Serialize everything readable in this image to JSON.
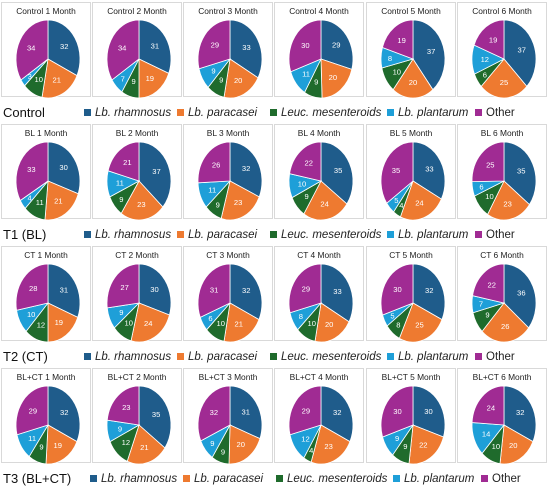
{
  "colors": {
    "rhamnosus": "#1f5c8b",
    "paracasei": "#ee7a30",
    "mesenteroids": "#1f6b2c",
    "plantarum": "#1e9fd8",
    "other": "#a02b93"
  },
  "legend": [
    {
      "key": "rhamnosus",
      "label": "Lb. rhamnosus",
      "italic": true
    },
    {
      "key": "paracasei",
      "label": "Lb. paracasei",
      "italic": true
    },
    {
      "key": "mesenteroids",
      "label": "Leuc. mesenteroids",
      "italic": true
    },
    {
      "key": "plantarum",
      "label": "Lb. plantarum",
      "italic": true
    },
    {
      "key": "other",
      "label": "Other",
      "italic": false
    }
  ],
  "series_order": [
    "rhamnosus",
    "paracasei",
    "mesenteroids",
    "plantarum",
    "other"
  ],
  "chart_data": {
    "type": "pie",
    "groups": [
      {
        "label": "Control",
        "charts": [
          {
            "title": "Control 1 Month",
            "values": [
              32,
              21,
              10,
              3,
              34
            ]
          },
          {
            "title": "Control 2 Month",
            "values": [
              31,
              19,
              9,
              7,
              34
            ]
          },
          {
            "title": "Control 3 Month",
            "values": [
              33,
              20,
              9,
              9,
              29
            ]
          },
          {
            "title": "Control 4 Month",
            "values": [
              29,
              20,
              9,
              11,
              30
            ]
          },
          {
            "title": "Control 5 Month",
            "values": [
              37,
              20,
              10,
              8,
              19
            ]
          },
          {
            "title": "Control 6 Month",
            "values": [
              37,
              25,
              6,
              12,
              19
            ]
          }
        ]
      },
      {
        "label": "T1 (BL)",
        "charts": [
          {
            "title": "BL 1 Month",
            "values": [
              30,
              21,
              11,
              4,
              33
            ]
          },
          {
            "title": "BL 2 Month",
            "values": [
              37,
              23,
              9,
              11,
              21
            ]
          },
          {
            "title": "BL 3 Month",
            "values": [
              32,
              23,
              9,
              11,
              26
            ]
          },
          {
            "title": "BL 4 Month",
            "values": [
              35,
              24,
              9,
              10,
              22
            ]
          },
          {
            "title": "BL 5 Month",
            "values": [
              33,
              24,
              4,
              5,
              35
            ]
          },
          {
            "title": "BL 6 Month",
            "values": [
              35,
              23,
              10,
              6,
              25
            ]
          }
        ]
      },
      {
        "label": "T2 (CT)",
        "charts": [
          {
            "title": "CT 1 Month",
            "values": [
              31,
              19,
              12,
              10,
              28
            ]
          },
          {
            "title": "CT 2 Month",
            "values": [
              30,
              24,
              10,
              9,
              27
            ]
          },
          {
            "title": "CT 3 Month",
            "values": [
              32,
              21,
              10,
              6,
              31
            ]
          },
          {
            "title": "CT 4 Month",
            "values": [
              33,
              20,
              10,
              8,
              29
            ]
          },
          {
            "title": "CT 5 Month",
            "values": [
              32,
              25,
              8,
              5,
              30
            ]
          },
          {
            "title": "CT 6 Month",
            "values": [
              36,
              26,
              9,
              7,
              22
            ]
          }
        ]
      },
      {
        "label": "T3 (BL+CT)",
        "charts": [
          {
            "title": "BL+CT 1 Month",
            "values": [
              32,
              19,
              9,
              11,
              29
            ]
          },
          {
            "title": "BL+CT 2 Month",
            "values": [
              35,
              21,
              12,
              9,
              23
            ]
          },
          {
            "title": "BL+CT 3 Month",
            "values": [
              31,
              20,
              9,
              9,
              32
            ]
          },
          {
            "title": "BL+CT 4 Month",
            "values": [
              32,
              23,
              4,
              12,
              29
            ]
          },
          {
            "title": "BL+CT 5 Month",
            "values": [
              30,
              22,
              9,
              9,
              30
            ]
          },
          {
            "title": "BL+CT 6 Month",
            "values": [
              32,
              20,
              10,
              14,
              24
            ]
          }
        ]
      }
    ]
  }
}
